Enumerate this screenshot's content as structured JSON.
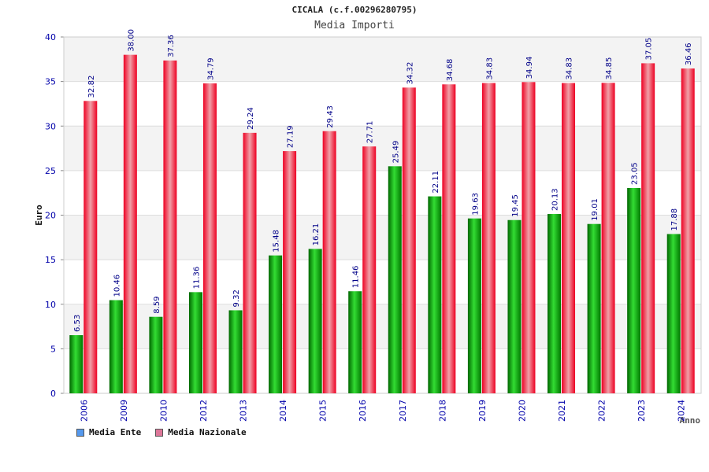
{
  "chart_data": {
    "type": "bar",
    "title": "CICALA (c.f.00296280795)",
    "subtitle": "Media Importi",
    "xlabel": "Anno",
    "ylabel": "Euro",
    "ylim": [
      0,
      40
    ],
    "yticks": [
      0,
      5,
      10,
      15,
      20,
      25,
      30,
      35,
      40
    ],
    "categories": [
      "2006",
      "2009",
      "2010",
      "2012",
      "2013",
      "2014",
      "2015",
      "2016",
      "2017",
      "2018",
      "2019",
      "2020",
      "2021",
      "2022",
      "2023",
      "2024"
    ],
    "series": [
      {
        "name": "Media Ente",
        "color": "#00aa00",
        "values": [
          6.53,
          10.46,
          8.59,
          11.36,
          9.32,
          15.48,
          16.21,
          11.46,
          25.49,
          22.11,
          19.63,
          19.45,
          20.13,
          19.01,
          23.05,
          17.88
        ],
        "labels": [
          "6.53",
          "10.46",
          "8.59",
          "11.36",
          "9.32",
          "15.48",
          "16.21",
          "11.46",
          "25.49",
          "22.11",
          "19.63",
          "19.45",
          "20.13",
          "19.01",
          "23.05",
          "17.88"
        ]
      },
      {
        "name": "Media Nazionale",
        "color": "#ee1122",
        "values": [
          32.82,
          38.0,
          37.36,
          34.79,
          29.24,
          27.19,
          29.43,
          27.71,
          34.32,
          34.68,
          34.83,
          34.94,
          34.83,
          34.85,
          37.05,
          36.46
        ],
        "labels": [
          "32.82",
          "38.00",
          "37.36",
          "34.79",
          "29.24",
          "27.19",
          "29.43",
          "27.71",
          "34.32",
          "34.68",
          "34.83",
          "34.94",
          "34.83",
          "34.85",
          "37.05",
          "36.46"
        ]
      }
    ],
    "legend": [
      {
        "label": "Media Ente",
        "color": "#5599ee"
      },
      {
        "label": "Media Nazionale",
        "color": "#dd7799"
      }
    ],
    "grid": true,
    "legend_position": "bottom-left"
  }
}
